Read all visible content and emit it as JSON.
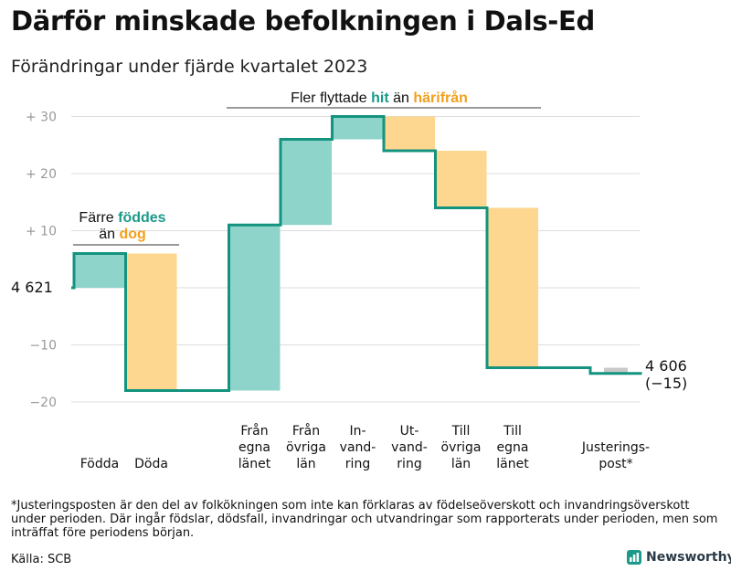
{
  "title": "Därför minskade befolkningen i Dals-Ed",
  "subtitle": "Förändringar under fjärde kvartalet 2023",
  "footnote": "*Justeringsposten är den del av folkökningen som inte kan förklaras av födelseöverskott och invandringsöverskott under perioden. Där ingår födslar, dödsfall, invandringar och utvandringar som rapporterats under perioden, men som inträffat före periodens början.",
  "source": "Källa: SCB",
  "brand": "Newsworthy",
  "colors": {
    "inflow": "#8ed4cb",
    "outflow": "#fdd68f",
    "line": "#14937f",
    "adjustment": "#c8c8c8",
    "grid": "#dddddd"
  },
  "chart_data": {
    "type": "waterfall",
    "start_value": 4621,
    "start_label": "4 621",
    "end_value": 4606,
    "end_label": "4 606",
    "end_change_label": "(−15)",
    "y_axis": {
      "range": [
        -23,
        32
      ],
      "ticks": [
        {
          "value": 30,
          "label": "+  30"
        },
        {
          "value": 20,
          "label": "+  20"
        },
        {
          "value": 10,
          "label": "+  10"
        },
        {
          "value": -10,
          "label": "−10"
        },
        {
          "value": -20,
          "label": "−20"
        }
      ]
    },
    "categories": [
      {
        "key": "fodda",
        "label": [
          "Födda"
        ],
        "change": 6,
        "kind": "inflow"
      },
      {
        "key": "doda",
        "label": [
          "Döda"
        ],
        "change": -24,
        "kind": "outflow"
      },
      {
        "key": "gap",
        "label": [],
        "change": 0,
        "kind": "spacer"
      },
      {
        "key": "fran-egna-lanet",
        "label": [
          "Från",
          "egna",
          "länet"
        ],
        "change": 29,
        "kind": "inflow"
      },
      {
        "key": "fran-ovriga-lan",
        "label": [
          "Från",
          "övriga",
          "län"
        ],
        "change": 15,
        "kind": "inflow"
      },
      {
        "key": "invandring",
        "label": [
          "In-",
          "vand-",
          "ring"
        ],
        "change": 4,
        "kind": "inflow"
      },
      {
        "key": "utvandring",
        "label": [
          "Ut-",
          "vand-",
          "ring"
        ],
        "change": -6,
        "kind": "outflow"
      },
      {
        "key": "till-ovriga-lan",
        "label": [
          "Till",
          "övriga",
          "län"
        ],
        "change": -10,
        "kind": "outflow"
      },
      {
        "key": "till-egna-lanet",
        "label": [
          "Till",
          "egna",
          "länet"
        ],
        "change": -28,
        "kind": "outflow"
      },
      {
        "key": "gap2",
        "label": [],
        "change": 0,
        "kind": "spacer"
      },
      {
        "key": "justeringspost",
        "label": [
          "Justerings-",
          "post*"
        ],
        "change": -1,
        "kind": "adjustment"
      }
    ],
    "annotations": {
      "births": {
        "line1": "Färre",
        "highlight1": "föddes",
        "line2": "än",
        "highlight2": "dog"
      },
      "migration": {
        "pre": "Fler flyttade",
        "highlight1": "hit",
        "mid": "än",
        "highlight2": "härifrån"
      }
    }
  }
}
